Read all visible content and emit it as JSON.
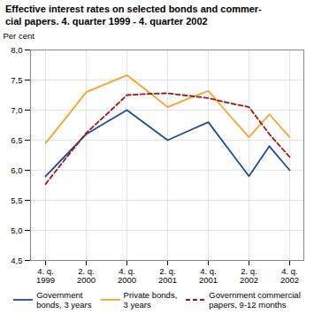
{
  "chart_data": {
    "type": "line",
    "title": "Effective interest rates on selected bonds and commer-\ncial papers. 4. quarter 1999 - 4. quarter 2002",
    "y_label": "Per cent",
    "categories": [
      "4. q.\n1999",
      null,
      "2. q.\n2000",
      null,
      "4. q.\n2000",
      null,
      "2. q.\n2001",
      null,
      "4. q.\n2001",
      null,
      "2. q.\n2002",
      null,
      "4. q.\n2002"
    ],
    "series": [
      {
        "name": "Government\nbonds, 3 years",
        "color": "#1a4b9b",
        "line_style": "solid",
        "values": [
          5.9,
          6.25,
          6.6,
          6.8,
          7.0,
          6.75,
          6.5,
          6.65,
          6.8,
          6.35,
          5.9,
          6.4,
          6.0
        ]
      },
      {
        "name": "Private bonds,\n3 years",
        "color": "#f4a428",
        "line_style": "solid",
        "values": [
          6.45,
          6.87,
          7.3,
          7.44,
          7.58,
          7.32,
          7.05,
          7.19,
          7.32,
          6.93,
          6.55,
          6.93,
          6.55
        ]
      },
      {
        "name": "Government commercial\npapers, 9-12 months",
        "color": "#aa1111",
        "line_style": "dashed",
        "values": [
          5.77,
          6.2,
          6.62,
          6.93,
          7.25,
          7.27,
          7.28,
          7.24,
          7.2,
          7.12,
          7.05,
          6.6,
          6.22
        ]
      }
    ],
    "ylim": [
      4.5,
      8.0
    ],
    "yticks": [
      {
        "value": 4.5,
        "label": "4,5"
      },
      {
        "value": 5.0,
        "label": "5,0"
      },
      {
        "value": 5.5,
        "label": "5,5"
      },
      {
        "value": 6.0,
        "label": "6,0"
      },
      {
        "value": 6.5,
        "label": "6,5"
      },
      {
        "value": 7.0,
        "label": "7,0"
      },
      {
        "value": 7.5,
        "label": "7,5"
      },
      {
        "value": 8.0,
        "label": "8,0"
      }
    ],
    "grid": true,
    "legend": "bottom"
  }
}
